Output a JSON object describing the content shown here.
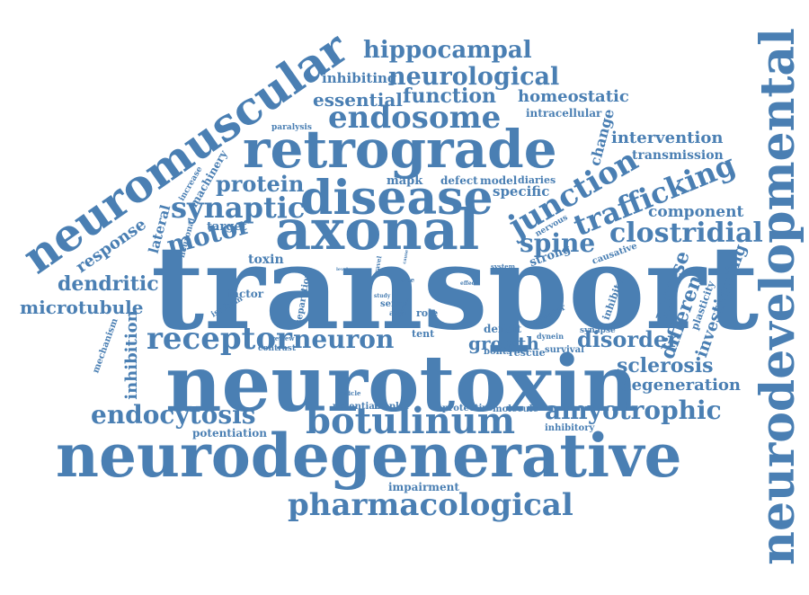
{
  "colors": {
    "word": "#4a7fb3",
    "background": "#ffffff"
  },
  "words": [
    "transport",
    "neurotoxin",
    "neurodegenerative",
    "axonal",
    "disease",
    "retrograde",
    "neuromuscular",
    "neurodevelopmental",
    "botulinum",
    "endosome",
    "neurological",
    "hippocampal",
    "function",
    "essential",
    "homeostatic",
    "intracellular",
    "inhibiting",
    "paralysis",
    "change",
    "intervention",
    "transmission",
    "junction",
    "trafficking",
    "protein",
    "synaptic",
    "mapk",
    "defect",
    "model",
    "diaries",
    "specific",
    "machinery",
    "increase",
    "motor",
    "target",
    "component",
    "clostridial",
    "spine",
    "lateral",
    "response",
    "neuronal",
    "toxin",
    "nervous",
    "dendritic",
    "factor",
    "microtubule",
    "isoform",
    "separation",
    "receptor",
    "neuron",
    "tent",
    "growth",
    "disorder",
    "mouse",
    "different",
    "investigating",
    "plasticity",
    "inhibitor",
    "causative",
    "strong",
    "system",
    "mechanism",
    "inhibition",
    "review",
    "contrast",
    "role",
    "serve",
    "axon",
    "study",
    "deficit",
    "bonts",
    "rescue",
    "adaptor",
    "dynein",
    "synapse",
    "survival",
    "sclerosis",
    "degeneration",
    "endocytosis",
    "amyotrophic",
    "vesicle",
    "potential",
    "mapkα",
    "protective",
    "molecule",
    "inhibitory",
    "potentiation",
    "impairment",
    "pharmacological",
    "effect",
    "size",
    "travel",
    "level",
    "cause",
    "screen"
  ]
}
